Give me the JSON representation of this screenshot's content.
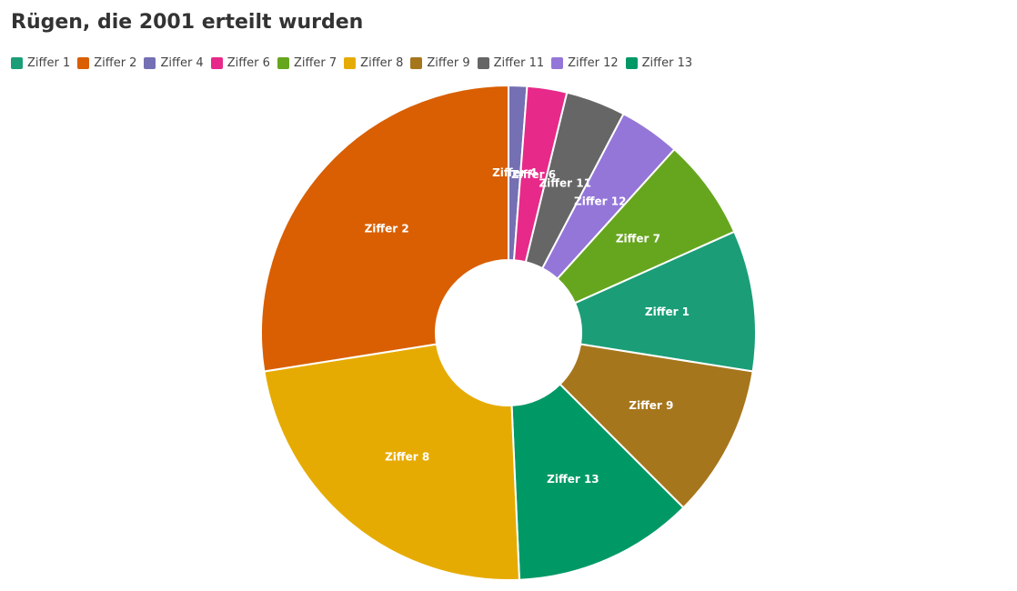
{
  "title": "Rügen, die 2001 erteilt wurden",
  "chart_data": {
    "type": "pie",
    "donut": true,
    "title": "Rügen, die 2001 erteilt wurden",
    "legend_position": "top-left",
    "legend": [
      "Ziffer 1",
      "Ziffer 2",
      "Ziffer 4",
      "Ziffer 6",
      "Ziffer 7",
      "Ziffer 8",
      "Ziffer 9",
      "Ziffer 11",
      "Ziffer 12",
      "Ziffer 13"
    ],
    "slices": [
      {
        "label": "Ziffer 4",
        "value": 1.2,
        "color": "#7570b3"
      },
      {
        "label": "Ziffer 6",
        "value": 2.6,
        "color": "#e7298a"
      },
      {
        "label": "Ziffer 11",
        "value": 3.9,
        "color": "#666666"
      },
      {
        "label": "Ziffer 12",
        "value": 4.0,
        "color": "#9476d9"
      },
      {
        "label": "Ziffer 7",
        "value": 6.6,
        "color": "#66a61e"
      },
      {
        "label": "Ziffer 1",
        "value": 9.2,
        "color": "#1b9e77"
      },
      {
        "label": "Ziffer 9",
        "value": 10.0,
        "color": "#a6761d"
      },
      {
        "label": "Ziffer 13",
        "value": 11.8,
        "color": "#009966"
      },
      {
        "label": "Ziffer 8",
        "value": 23.2,
        "color": "#e6ab02"
      },
      {
        "label": "Ziffer 2",
        "value": 27.5,
        "color": "#d95f02"
      }
    ]
  }
}
